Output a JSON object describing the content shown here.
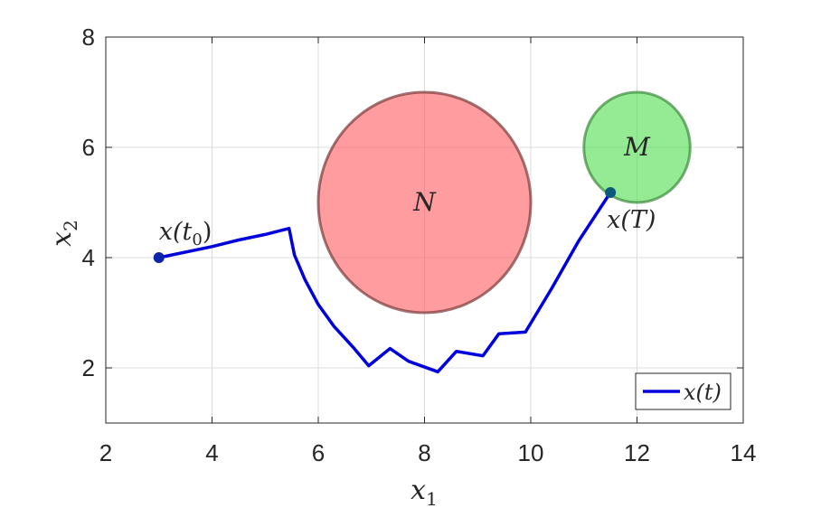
{
  "chart_data": {
    "type": "line",
    "title": "",
    "xlabel": {
      "base": "x",
      "sub": "1"
    },
    "ylabel": {
      "base": "x",
      "sub": "2"
    },
    "xlim": [
      2,
      14
    ],
    "ylim": [
      1,
      8
    ],
    "xticks": [
      "2",
      "4",
      "6",
      "8",
      "10",
      "12",
      "14"
    ],
    "yticks": [
      "2",
      "4",
      "6",
      "8"
    ],
    "xtick_values": [
      2,
      4,
      6,
      8,
      10,
      12,
      14
    ],
    "ytick_values": [
      2,
      4,
      6,
      8
    ],
    "grid": true,
    "legend": {
      "placement": "bottom-right",
      "label": "x(t)"
    },
    "series": [
      {
        "name": "x(t)",
        "color": "#0000dd",
        "points": [
          [
            3.0,
            4.0
          ],
          [
            4.0,
            4.2
          ],
          [
            4.5,
            4.32
          ],
          [
            5.0,
            4.42
          ],
          [
            5.45,
            4.53
          ],
          [
            5.55,
            4.05
          ],
          [
            5.75,
            3.6
          ],
          [
            6.0,
            3.15
          ],
          [
            6.3,
            2.75
          ],
          [
            6.65,
            2.38
          ],
          [
            6.95,
            2.04
          ],
          [
            7.35,
            2.35
          ],
          [
            7.7,
            2.12
          ],
          [
            8.25,
            1.93
          ],
          [
            8.6,
            2.3
          ],
          [
            9.1,
            2.22
          ],
          [
            9.4,
            2.62
          ],
          [
            9.9,
            2.65
          ],
          [
            10.4,
            3.45
          ],
          [
            10.9,
            4.3
          ],
          [
            11.5,
            5.18
          ]
        ]
      }
    ],
    "regions": [
      {
        "label": "N",
        "center": [
          8,
          5
        ],
        "radius": 2,
        "fill": "#ff5a5f",
        "stroke": "#7a3a3a"
      },
      {
        "label": "M",
        "center": [
          12,
          6
        ],
        "radius": 1,
        "fill": "#4ddd4d",
        "stroke": "#3d8a3d"
      }
    ],
    "markers": [
      {
        "point": [
          3.0,
          4.0
        ],
        "color": "#0b24a8",
        "label": {
          "base": "x(t",
          "sub": "0",
          "tail": ")"
        }
      },
      {
        "point": [
          11.5,
          5.18
        ],
        "color": "#0b5a7a",
        "label": {
          "base": "x(T)",
          "sub": "",
          "tail": ""
        }
      }
    ]
  }
}
